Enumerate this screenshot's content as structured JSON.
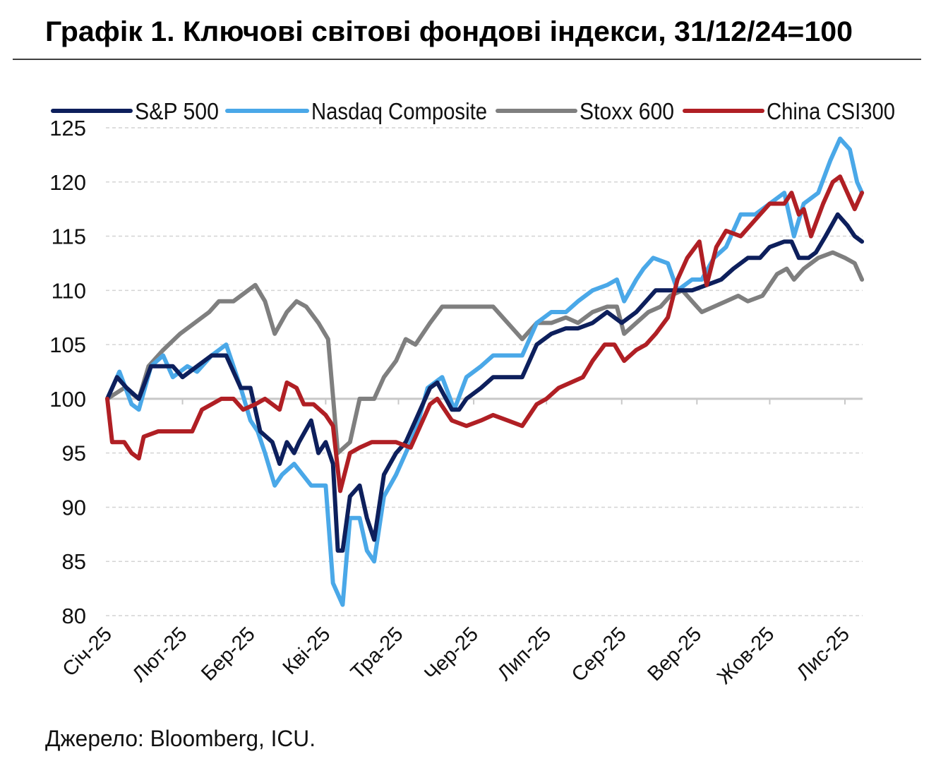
{
  "chart_data": {
    "type": "line",
    "title": "Графік 1. Ключові світові фондові індекси, 31/12/24=100",
    "source": "Джерело: Bloomberg, ICU.",
    "xlabel": "",
    "ylabel": "",
    "x_unit": "days since 2025-01-01",
    "ylim": [
      80,
      125
    ],
    "yticks": [
      80,
      85,
      90,
      95,
      100,
      105,
      110,
      115,
      120,
      125
    ],
    "xticks": [
      {
        "day": 0,
        "label": "Січ-25"
      },
      {
        "day": 31,
        "label": "Лют-25"
      },
      {
        "day": 59,
        "label": "Бер-25"
      },
      {
        "day": 90,
        "label": "Кві-25"
      },
      {
        "day": 120,
        "label": "Тра-25"
      },
      {
        "day": 151,
        "label": "Чер-25"
      },
      {
        "day": 181,
        "label": "Лип-25"
      },
      {
        "day": 212,
        "label": "Сер-25"
      },
      {
        "day": 243,
        "label": "Вер-25"
      },
      {
        "day": 273,
        "label": "Жов-25"
      },
      {
        "day": 304,
        "label": "Лис-25"
      }
    ],
    "grid": "horizontal-dashed",
    "legend_position": "top",
    "series": [
      {
        "name": "Stoxx 600",
        "color": "#7f7f7f",
        "points": [
          [
            0,
            100
          ],
          [
            7,
            101
          ],
          [
            13,
            100
          ],
          [
            17,
            103
          ],
          [
            23,
            104.5
          ],
          [
            30,
            106
          ],
          [
            36,
            107
          ],
          [
            42,
            108
          ],
          [
            46,
            109
          ],
          [
            52,
            109
          ],
          [
            58,
            110
          ],
          [
            61,
            110.5
          ],
          [
            65,
            109
          ],
          [
            69,
            106
          ],
          [
            74,
            108
          ],
          [
            78,
            109
          ],
          [
            82,
            108.5
          ],
          [
            87,
            107
          ],
          [
            91,
            105.5
          ],
          [
            95,
            95
          ],
          [
            100,
            96
          ],
          [
            104,
            100
          ],
          [
            110,
            100
          ],
          [
            114,
            102
          ],
          [
            119,
            103.5
          ],
          [
            123,
            105.5
          ],
          [
            127,
            105
          ],
          [
            133,
            107
          ],
          [
            138,
            108.5
          ],
          [
            142,
            108.5
          ],
          [
            146,
            108.5
          ],
          [
            154,
            108.5
          ],
          [
            159,
            108.5
          ],
          [
            165,
            107
          ],
          [
            171,
            105.5
          ],
          [
            177,
            107
          ],
          [
            183,
            107
          ],
          [
            189,
            107.5
          ],
          [
            194,
            107
          ],
          [
            200,
            108
          ],
          [
            206,
            108.5
          ],
          [
            210,
            108.5
          ],
          [
            213,
            106
          ],
          [
            218,
            107
          ],
          [
            223,
            108
          ],
          [
            228,
            108.5
          ],
          [
            232,
            109.5
          ],
          [
            237,
            110
          ],
          [
            241,
            109
          ],
          [
            245,
            108
          ],
          [
            250,
            108.5
          ],
          [
            255,
            109
          ],
          [
            260,
            109.5
          ],
          [
            264,
            109
          ],
          [
            270,
            109.5
          ],
          [
            276,
            111.5
          ],
          [
            280,
            112
          ],
          [
            283,
            111
          ],
          [
            287,
            112
          ],
          [
            293,
            113
          ],
          [
            299,
            113.5
          ],
          [
            304,
            113
          ],
          [
            308,
            112.5
          ],
          [
            311,
            111
          ]
        ]
      },
      {
        "name": "Nasdaq Composite",
        "color": "#4aa8e8",
        "points": [
          [
            0,
            100
          ],
          [
            5,
            102.5
          ],
          [
            10,
            99.5
          ],
          [
            13,
            99
          ],
          [
            18,
            103
          ],
          [
            23,
            104
          ],
          [
            27,
            102
          ],
          [
            33,
            103
          ],
          [
            37,
            102.5
          ],
          [
            43,
            104
          ],
          [
            49,
            105
          ],
          [
            55,
            101
          ],
          [
            59,
            98
          ],
          [
            62,
            97
          ],
          [
            65,
            95
          ],
          [
            69,
            92
          ],
          [
            72,
            93
          ],
          [
            77,
            94
          ],
          [
            84,
            92
          ],
          [
            90,
            92
          ],
          [
            93,
            83
          ],
          [
            97,
            81
          ],
          [
            100,
            89
          ],
          [
            104,
            89
          ],
          [
            107,
            86
          ],
          [
            110,
            85
          ],
          [
            114,
            91
          ],
          [
            119,
            93
          ],
          [
            123,
            95
          ],
          [
            127,
            97
          ],
          [
            132,
            101
          ],
          [
            138,
            102
          ],
          [
            143,
            99
          ],
          [
            148,
            102
          ],
          [
            154,
            103
          ],
          [
            159,
            104
          ],
          [
            165,
            104
          ],
          [
            171,
            104
          ],
          [
            177,
            107
          ],
          [
            183,
            108
          ],
          [
            189,
            108
          ],
          [
            194,
            109
          ],
          [
            200,
            110
          ],
          [
            206,
            110.5
          ],
          [
            210,
            111
          ],
          [
            213,
            109
          ],
          [
            218,
            111
          ],
          [
            221,
            112
          ],
          [
            225,
            113
          ],
          [
            231,
            112.5
          ],
          [
            235,
            110
          ],
          [
            241,
            111
          ],
          [
            245,
            111
          ],
          [
            250,
            113
          ],
          [
            255,
            114
          ],
          [
            261,
            117
          ],
          [
            267,
            117
          ],
          [
            273,
            118
          ],
          [
            279,
            119
          ],
          [
            283,
            115
          ],
          [
            287,
            118
          ],
          [
            293,
            119
          ],
          [
            298,
            122
          ],
          [
            302,
            124
          ],
          [
            306,
            123
          ],
          [
            309,
            120
          ],
          [
            311,
            119
          ]
        ]
      },
      {
        "name": "S&P 500",
        "color": "#0d1f5c",
        "points": [
          [
            0,
            100
          ],
          [
            4,
            102
          ],
          [
            8,
            101
          ],
          [
            13,
            100
          ],
          [
            18,
            103
          ],
          [
            27,
            103
          ],
          [
            31,
            102
          ],
          [
            37,
            103
          ],
          [
            43,
            104
          ],
          [
            49,
            104
          ],
          [
            55,
            101
          ],
          [
            59,
            101
          ],
          [
            63,
            97
          ],
          [
            68,
            96
          ],
          [
            71,
            94
          ],
          [
            74,
            96
          ],
          [
            77,
            95
          ],
          [
            79,
            96
          ],
          [
            84,
            98
          ],
          [
            87,
            95
          ],
          [
            90,
            96
          ],
          [
            93,
            94
          ],
          [
            95,
            86
          ],
          [
            97,
            86
          ],
          [
            100,
            91
          ],
          [
            104,
            92
          ],
          [
            107,
            89
          ],
          [
            110,
            87
          ],
          [
            114,
            93
          ],
          [
            119,
            95
          ],
          [
            123,
            96
          ],
          [
            127,
            98
          ],
          [
            133,
            101
          ],
          [
            136,
            101.5
          ],
          [
            142,
            99
          ],
          [
            145,
            99
          ],
          [
            148,
            100
          ],
          [
            154,
            101
          ],
          [
            159,
            102
          ],
          [
            165,
            102
          ],
          [
            171,
            102
          ],
          [
            177,
            105
          ],
          [
            183,
            106
          ],
          [
            189,
            106.5
          ],
          [
            194,
            106.5
          ],
          [
            200,
            107
          ],
          [
            206,
            108
          ],
          [
            212,
            107
          ],
          [
            218,
            108
          ],
          [
            222,
            109
          ],
          [
            226,
            110
          ],
          [
            232,
            110
          ],
          [
            237,
            110
          ],
          [
            241,
            110
          ],
          [
            247,
            110.5
          ],
          [
            253,
            111
          ],
          [
            258,
            112
          ],
          [
            264,
            113
          ],
          [
            269,
            113
          ],
          [
            273,
            114
          ],
          [
            279,
            114.5
          ],
          [
            282,
            114.5
          ],
          [
            285,
            113
          ],
          [
            289,
            113
          ],
          [
            292,
            113.5
          ],
          [
            296,
            115
          ],
          [
            301,
            117
          ],
          [
            305,
            116
          ],
          [
            308,
            115
          ],
          [
            311,
            114.5
          ]
        ]
      },
      {
        "name": "China CSI300",
        "color": "#b01f24",
        "points": [
          [
            0,
            100
          ],
          [
            2,
            96
          ],
          [
            7,
            96
          ],
          [
            10,
            95
          ],
          [
            13,
            94.5
          ],
          [
            15,
            96.5
          ],
          [
            21,
            97
          ],
          [
            29,
            97
          ],
          [
            35,
            97
          ],
          [
            39,
            99
          ],
          [
            43,
            99.5
          ],
          [
            47,
            100
          ],
          [
            52,
            100
          ],
          [
            56,
            99
          ],
          [
            61,
            99.5
          ],
          [
            65,
            100
          ],
          [
            71,
            99
          ],
          [
            74,
            101.5
          ],
          [
            78,
            101
          ],
          [
            81,
            99.5
          ],
          [
            85,
            99.5
          ],
          [
            90,
            98.5
          ],
          [
            93,
            97.5
          ],
          [
            96,
            91.5
          ],
          [
            100,
            95
          ],
          [
            104,
            95.5
          ],
          [
            109,
            96
          ],
          [
            114,
            96
          ],
          [
            119,
            96
          ],
          [
            125,
            95.5
          ],
          [
            129,
            97.5
          ],
          [
            133,
            99.5
          ],
          [
            136,
            100
          ],
          [
            142,
            98
          ],
          [
            148,
            97.5
          ],
          [
            154,
            98
          ],
          [
            159,
            98.5
          ],
          [
            165,
            98
          ],
          [
            171,
            97.5
          ],
          [
            177,
            99.5
          ],
          [
            181,
            100
          ],
          [
            186,
            101
          ],
          [
            191,
            101.5
          ],
          [
            196,
            102
          ],
          [
            200,
            103.5
          ],
          [
            205,
            105
          ],
          [
            209,
            105
          ],
          [
            213,
            103.5
          ],
          [
            218,
            104.5
          ],
          [
            222,
            105
          ],
          [
            226,
            106
          ],
          [
            231,
            107.5
          ],
          [
            235,
            111
          ],
          [
            239,
            113
          ],
          [
            244,
            114.5
          ],
          [
            247,
            110.5
          ],
          [
            251,
            114
          ],
          [
            255,
            115.5
          ],
          [
            261,
            115
          ],
          [
            267,
            116.5
          ],
          [
            273,
            118
          ],
          [
            279,
            118
          ],
          [
            282,
            119
          ],
          [
            285,
            117
          ],
          [
            287,
            117.5
          ],
          [
            290,
            115
          ],
          [
            295,
            118
          ],
          [
            299,
            120
          ],
          [
            302,
            120.5
          ],
          [
            308,
            117.5
          ],
          [
            311,
            119
          ]
        ]
      }
    ],
    "legend_order": [
      "S&P 500",
      "Nasdaq Composite",
      "Stoxx 600",
      "China CSI300"
    ]
  }
}
